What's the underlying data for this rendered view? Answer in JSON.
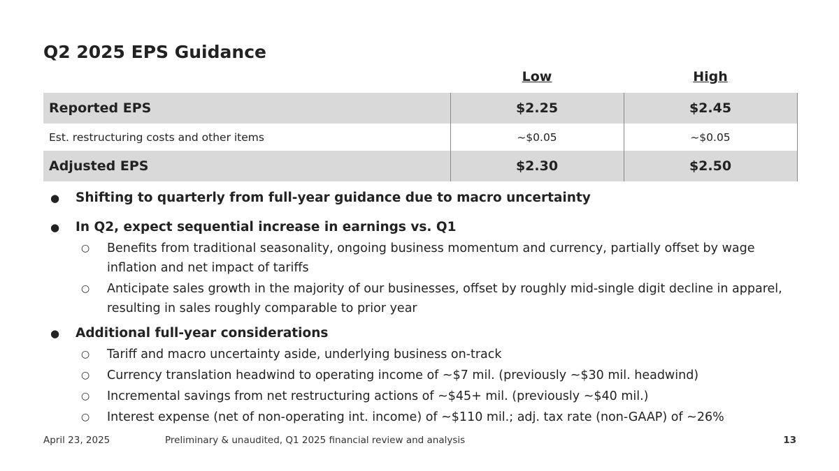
{
  "title": "Q2 2025 EPS Guidance",
  "table": {
    "headers": {
      "low": "Low",
      "high": "High"
    },
    "rows": [
      {
        "label": "Reported EPS",
        "low": "$2.25",
        "high": "$2.45"
      },
      {
        "label": "Est. restructuring costs and other items",
        "low": "~$0.05",
        "high": "~$0.05"
      },
      {
        "label": "Adjusted EPS",
        "low": "$2.30",
        "high": "$2.50"
      }
    ]
  },
  "bullets": [
    {
      "text": "Shifting to quarterly from full-year guidance due to macro uncertainty",
      "sub": []
    },
    {
      "text": "In Q2, expect sequential increase in earnings vs. Q1",
      "sub": [
        "Benefits from traditional seasonality, ongoing business momentum and currency, partially offset by wage inflation and net impact of tariffs",
        "Anticipate sales growth in the majority of our businesses, offset by roughly mid-single digit decline in apparel, resulting in sales roughly comparable to prior year"
      ]
    },
    {
      "text": "Additional full-year considerations",
      "sub": [
        "Tariff and macro uncertainty aside, underlying business on-track",
        "Currency translation headwind to operating income of ~$7 mil. (previously ~$30 mil. headwind)",
        "Incremental savings from net restructuring actions of ~$45+ mil. (previously ~$40 mil.)",
        "Interest expense (net of non-operating int. income) of ~$110 mil.; adj. tax rate (non-GAAP) of ~26%"
      ]
    }
  ],
  "footer": {
    "date": "April 23, 2025",
    "disclaimer": "Preliminary & unaudited, Q1 2025 financial review and analysis",
    "page": "13"
  },
  "colors": {
    "shaded_row": "#d9d9d9",
    "text": "#222222"
  }
}
